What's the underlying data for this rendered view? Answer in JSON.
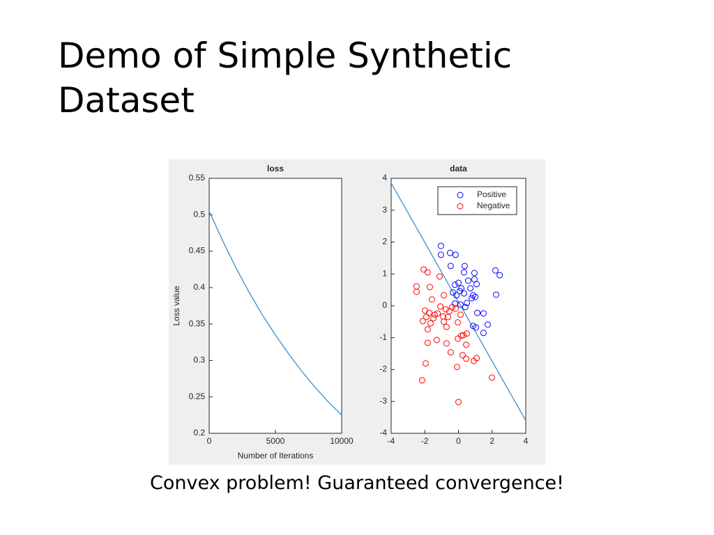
{
  "title": "Demo of Simple Synthetic Dataset",
  "caption": "Convex problem! Guaranteed convergence!",
  "chart_data": [
    {
      "type": "line",
      "title": "loss",
      "x_label": "Number of Iterations",
      "y_label": "Loss value",
      "x": [
        0,
        1000,
        2000,
        3000,
        4000,
        5000,
        6000,
        7000,
        8000,
        9000,
        10000
      ],
      "values": [
        0.505,
        0.465,
        0.428,
        0.394,
        0.363,
        0.335,
        0.309,
        0.285,
        0.263,
        0.243,
        0.225
      ],
      "color": "#3a8fc8",
      "xlim": [
        0,
        10000
      ],
      "xticks": [
        0,
        5000,
        10000
      ],
      "ylim": [
        0.2,
        0.55
      ],
      "yticks": [
        0.2,
        0.25,
        0.3,
        0.35,
        0.4,
        0.45,
        0.5,
        0.55
      ]
    },
    {
      "type": "scatter",
      "title": "data",
      "legend": "northeast",
      "xlim": [
        -4,
        4
      ],
      "xticks": [
        -4,
        -2,
        0,
        2,
        4
      ],
      "ylim": [
        -4,
        4
      ],
      "yticks": [
        -4,
        -3,
        -2,
        -1,
        0,
        1,
        2,
        3,
        4
      ],
      "series": [
        {
          "name": "Positive",
          "color": "#0000ff",
          "x": [
            -1.04,
            -1.04,
            -0.5,
            -0.17,
            0.37,
            0.33,
            -0.46,
            0.95,
            -0.21,
            0,
            0.58,
            0.95,
            1.08,
            0.17,
            0.08,
            -0.33,
            -0.12,
            0.33,
            0.71,
            0.87,
            1.0,
            0.79,
            0.5,
            0.12,
            1.12,
            1.49,
            0.87,
            1.04,
            1.74,
            1.49,
            2.2,
            2.45,
            2.24,
            -0.21,
            0.41
          ],
          "y": [
            1.88,
            1.6,
            1.66,
            1.6,
            1.25,
            1.05,
            1.25,
            1.03,
            0.66,
            0.72,
            0.79,
            0.83,
            0.68,
            0.55,
            0.46,
            0.42,
            0.33,
            0.39,
            0.55,
            0.33,
            0.28,
            0.24,
            0.09,
            0.04,
            -0.22,
            -0.24,
            -0.63,
            -0.68,
            -0.59,
            -0.85,
            1.11,
            0.96,
            0.35,
            0.07,
            -0.04
          ]
        },
        {
          "name": "Negative",
          "color": "#ff0000",
          "x": [
            -2.07,
            -1.83,
            -2.49,
            -1.7,
            -1.12,
            -0.87,
            -1.58,
            -1.99,
            -1.41,
            -2.12,
            -1.49,
            -1.08,
            -0.75,
            -0.54,
            -0.37,
            -0.17,
            -1.24,
            -0.91,
            -0.62,
            -0.87,
            0.12,
            -1.66,
            -0.71,
            -0.04,
            0.5,
            -1.83,
            -0.04,
            -0.71,
            0.17,
            0.29,
            0.46,
            -1.29,
            -1.83,
            -0.46,
            0.25,
            0.46,
            -1.95,
            -0.08,
            1.08,
            0.91,
            1.99,
            -2.16,
            0,
            -2.49,
            -1.74,
            -1.91
          ],
          "y": [
            1.14,
            1.05,
            0.44,
            0.59,
            0.92,
            0.33,
            0.2,
            -0.15,
            -0.28,
            -0.48,
            -0.39,
            -0.02,
            -0.11,
            -0.17,
            -0.04,
            -0.09,
            -0.24,
            -0.33,
            -0.35,
            -0.5,
            -0.28,
            -0.55,
            -0.66,
            -0.52,
            -0.87,
            -0.74,
            -1.03,
            -1.18,
            -0.94,
            -0.92,
            -1.22,
            -1.07,
            -1.16,
            -1.46,
            -1.55,
            -1.66,
            -1.81,
            -1.92,
            -1.64,
            -1.73,
            -2.25,
            -2.34,
            -3.02,
            0.61,
            -0.22,
            -0.35
          ]
        }
      ],
      "boundary": {
        "x": [
          -4,
          4
        ],
        "y": [
          3.85,
          -3.6
        ],
        "color": "#3a8fc8"
      }
    }
  ]
}
